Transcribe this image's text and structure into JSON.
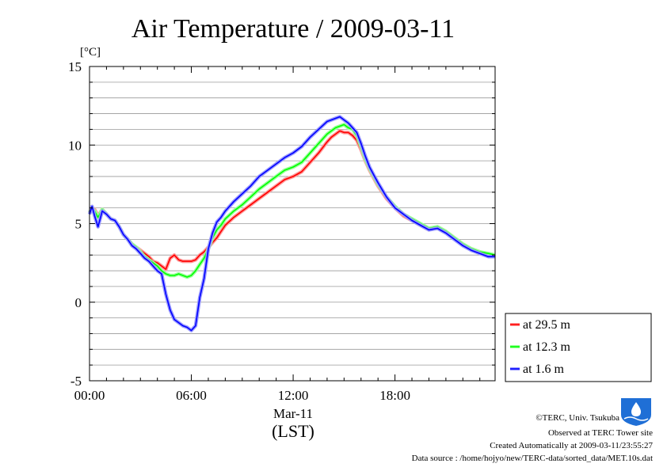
{
  "chart_data": {
    "type": "line",
    "title": "Air Temperature / 2009-03-11",
    "ylabel": "[°C]",
    "xlabel_date": "Mar-11",
    "xlabel": "(LST)",
    "ylim": [
      -5,
      15
    ],
    "yticks": [
      "15",
      "10",
      "5",
      "0",
      "-5"
    ],
    "xlim": [
      0,
      23.9
    ],
    "xticks": [
      {
        "value": 0,
        "label": "00:00"
      },
      {
        "value": 6,
        "label": "06:00"
      },
      {
        "value": 12,
        "label": "12:00"
      },
      {
        "value": 18,
        "label": "18:00"
      }
    ],
    "grid": true,
    "legend": "right, below plot middle",
    "x": [
      0.0,
      0.15,
      0.3,
      0.5,
      0.75,
      1.0,
      1.25,
      1.5,
      1.75,
      2.0,
      2.25,
      2.5,
      2.75,
      3.0,
      3.25,
      3.5,
      3.75,
      4.0,
      4.25,
      4.5,
      4.75,
      5.0,
      5.25,
      5.5,
      5.75,
      6.0,
      6.25,
      6.5,
      6.75,
      7.0,
      7.25,
      7.5,
      7.75,
      8.0,
      8.5,
      9.0,
      9.5,
      10.0,
      10.5,
      11.0,
      11.5,
      12.0,
      12.5,
      13.0,
      13.5,
      14.0,
      14.25,
      14.5,
      14.75,
      15.0,
      15.25,
      15.5,
      15.75,
      16.0,
      16.25,
      16.5,
      16.75,
      17.0,
      17.5,
      18.0,
      18.5,
      19.0,
      19.5,
      20.0,
      20.5,
      21.0,
      21.5,
      22.0,
      22.5,
      23.0,
      23.5,
      23.9
    ],
    "series": [
      {
        "name": "at 29.5 m",
        "color": "#ff0000",
        "values": [
          5.7,
          6.0,
          5.9,
          5.5,
          5.9,
          5.6,
          5.3,
          5.2,
          4.8,
          4.3,
          4.0,
          3.7,
          3.5,
          3.3,
          3.1,
          2.9,
          2.6,
          2.5,
          2.3,
          2.1,
          2.8,
          3.0,
          2.7,
          2.6,
          2.6,
          2.6,
          2.7,
          3.0,
          3.2,
          3.5,
          3.8,
          4.1,
          4.5,
          4.9,
          5.4,
          5.8,
          6.2,
          6.6,
          7.0,
          7.4,
          7.8,
          8.0,
          8.3,
          8.9,
          9.5,
          10.2,
          10.5,
          10.7,
          10.9,
          10.8,
          10.8,
          10.6,
          10.3,
          9.7,
          9.0,
          8.4,
          7.9,
          7.4,
          6.6,
          6.0,
          5.5,
          5.2,
          4.9,
          4.6,
          4.8,
          4.5,
          4.1,
          3.7,
          3.4,
          3.2,
          3.0,
          3.0
        ]
      },
      {
        "name": "at 12.3 m",
        "color": "#00ff00",
        "values": [
          5.7,
          6.0,
          5.8,
          5.4,
          5.9,
          5.6,
          5.3,
          5.2,
          4.8,
          4.3,
          4.0,
          3.7,
          3.5,
          3.2,
          2.9,
          2.7,
          2.5,
          2.3,
          2.0,
          1.8,
          1.7,
          1.7,
          1.8,
          1.7,
          1.6,
          1.7,
          2.0,
          2.4,
          2.8,
          3.4,
          4.1,
          4.6,
          4.9,
          5.3,
          5.8,
          6.2,
          6.7,
          7.2,
          7.6,
          8.0,
          8.4,
          8.6,
          8.9,
          9.5,
          10.1,
          10.7,
          10.9,
          11.1,
          11.2,
          11.3,
          11.1,
          11.0,
          10.6,
          9.9,
          9.1,
          8.5,
          8.0,
          7.5,
          6.7,
          6.1,
          5.6,
          5.3,
          5.0,
          4.7,
          4.8,
          4.5,
          4.1,
          3.7,
          3.4,
          3.2,
          3.1,
          3.0
        ]
      },
      {
        "name": "at 1.6 m",
        "color": "#0000ff",
        "values": [
          5.6,
          6.1,
          5.5,
          4.8,
          5.8,
          5.6,
          5.3,
          5.2,
          4.8,
          4.3,
          4.0,
          3.6,
          3.4,
          3.1,
          2.8,
          2.6,
          2.3,
          2.0,
          1.8,
          0.5,
          -0.5,
          -1.1,
          -1.3,
          -1.5,
          -1.6,
          -1.8,
          -1.5,
          0.3,
          1.5,
          3.4,
          4.4,
          5.1,
          5.4,
          5.8,
          6.4,
          6.9,
          7.4,
          8.0,
          8.4,
          8.8,
          9.2,
          9.5,
          9.9,
          10.5,
          11.0,
          11.5,
          11.6,
          11.7,
          11.8,
          11.6,
          11.4,
          11.1,
          10.8,
          10.1,
          9.3,
          8.6,
          8.1,
          7.6,
          6.7,
          6.0,
          5.6,
          5.2,
          4.9,
          4.6,
          4.7,
          4.4,
          4.0,
          3.6,
          3.3,
          3.1,
          2.9,
          2.9
        ]
      }
    ]
  },
  "footer": {
    "copyright": "©TERC, Univ. Tsukuba",
    "observed": "Observed at TERC Tower site",
    "created": "Created Automatically at 2009-03-11/23:55:27",
    "source": "Data source : /home/hojyo/new/TERC-data/sorted_data/MET.10s.dat",
    "logo_text": "TERC"
  }
}
